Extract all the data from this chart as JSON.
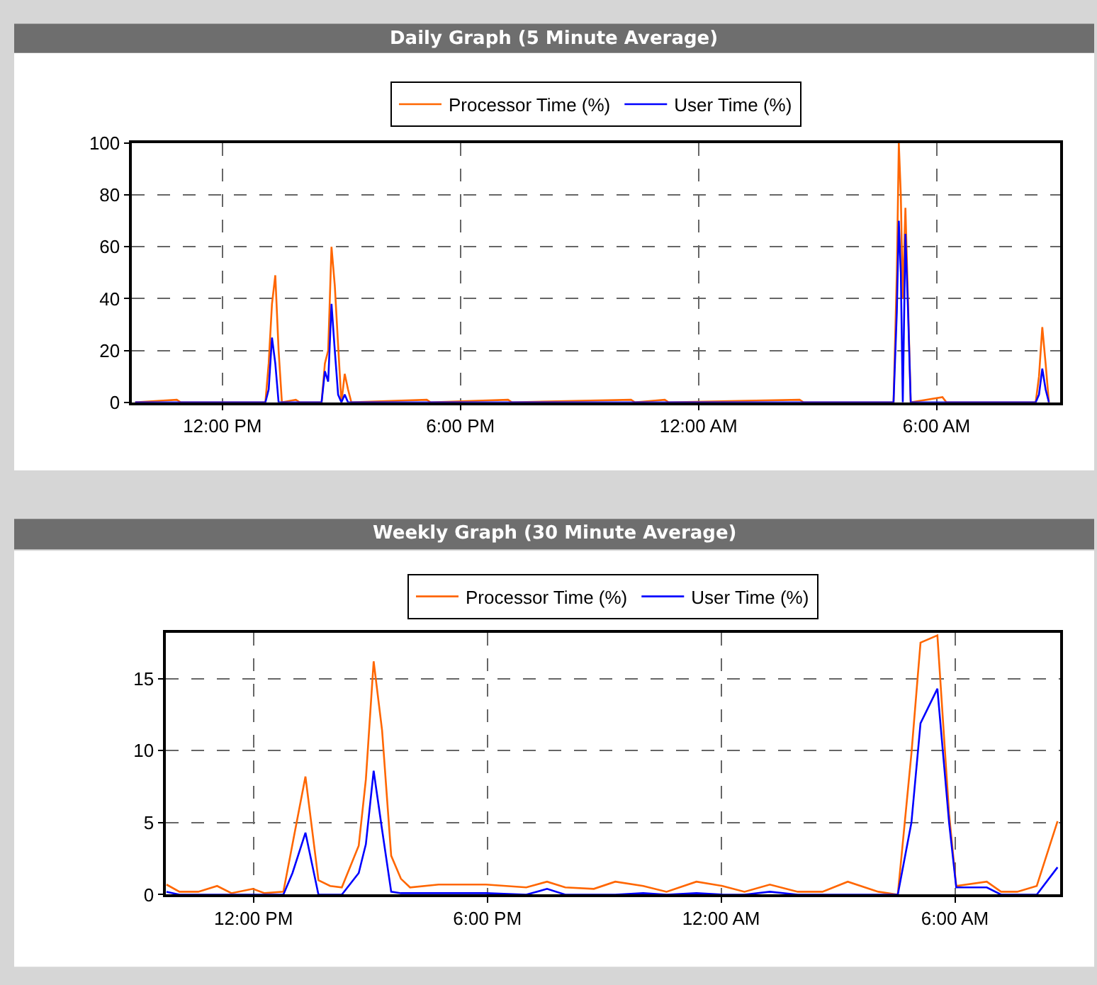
{
  "chart_data": [
    {
      "type": "line",
      "title": "Daily Graph (5 Minute Average)",
      "legend": "top",
      "grid": true,
      "marker": "none",
      "line_style": "solid",
      "x": [
        "--01-01T09:48",
        "--01-01T10:51",
        "--01-01T10:57",
        "--01-01T13:05",
        "--01-01T13:10",
        "--01-01T13:15",
        "--01-01T13:20",
        "--01-01T13:25",
        "--01-01T13:30",
        "--01-01T13:51",
        "--01-01T13:57",
        "--01-01T14:30",
        "--01-01T14:35",
        "--01-01T14:40",
        "--01-01T14:45",
        "--01-01T14:50",
        "--01-01T14:55",
        "--01-01T15:00",
        "--01-01T15:05",
        "--01-01T15:10",
        "--01-01T15:15",
        "--01-01T17:09",
        "--01-01T17:15",
        "--01-01T19:12",
        "--01-01T19:18",
        "--01-01T22:18",
        "--01-01T22:24",
        "--01-01T23:09",
        "--01-01T23:15",
        "--01-02T02:33",
        "--01-02T02:39",
        "--01-02T04:55",
        "--01-02T05:00",
        "--01-02T05:03",
        "--01-02T05:06",
        "--01-02T05:09",
        "--01-02T05:13",
        "--01-02T05:17",
        "--01-02T05:21",
        "--01-02T06:09",
        "--01-02T06:15",
        "--01-02T08:30",
        "--01-02T08:35",
        "--01-02T08:40",
        "--01-02T08:45",
        "--01-02T08:50"
      ],
      "series": [
        {
          "name": "Processor Time (%)",
          "color": "#ff6600",
          "values": [
            0,
            1,
            0,
            0,
            15,
            38,
            49,
            20,
            0,
            1,
            0,
            0,
            15,
            20,
            60,
            45,
            22,
            0,
            11,
            5,
            0,
            1,
            0,
            1,
            0,
            1,
            0,
            1,
            0,
            1,
            0,
            0,
            50,
            100,
            80,
            40,
            75,
            38,
            0,
            2,
            0,
            0,
            10,
            29,
            15,
            0
          ]
        },
        {
          "name": "User Time (%)",
          "color": "#0000ff",
          "values": [
            0,
            0,
            0,
            0,
            5,
            25,
            15,
            0,
            0,
            0,
            0,
            0,
            12,
            8,
            38,
            20,
            3,
            0,
            3,
            0,
            0,
            0,
            0,
            0,
            0,
            0,
            0,
            0,
            0,
            0,
            0,
            0,
            35,
            70,
            50,
            0,
            65,
            35,
            0,
            0,
            0,
            0,
            3,
            13,
            5,
            0
          ]
        }
      ],
      "xlim": [
        "--01-01T09:43",
        "--01-02T09:07"
      ],
      "xticks": [
        {
          "value": "--01-01T12:00",
          "label": "12:00 PM"
        },
        {
          "value": "--01-01T18:00",
          "label": "6:00 PM"
        },
        {
          "value": "--01-02T00:00",
          "label": "12:00 AM"
        },
        {
          "value": "--01-02T06:00",
          "label": "6:00 AM"
        }
      ],
      "ylim": [
        0,
        100
      ],
      "yticks": [
        0,
        20,
        40,
        60,
        80,
        100
      ]
    },
    {
      "type": "line",
      "title": "Weekly Graph (30 Minute Average)",
      "legend": "top",
      "grid": true,
      "marker": "none",
      "line_style": "solid",
      "x": [
        "--01-01T09:46",
        "--01-01T10:06",
        "--01-01T10:35",
        "--01-01T11:04",
        "--01-01T11:26",
        "--01-01T11:59",
        "--01-01T12:17",
        "--01-01T12:46",
        "--01-01T13:00",
        "--01-01T13:20",
        "--01-01T13:40",
        "--01-01T13:58",
        "--01-01T14:16",
        "--01-01T14:42",
        "--01-01T14:53",
        "--01-01T15:05",
        "--01-01T15:18",
        "--01-01T15:32",
        "--01-01T15:47",
        "--01-01T16:01",
        "--01-01T16:45",
        "--01-01T17:58",
        "--01-01T19:00",
        "--01-01T19:32",
        "--01-01T20:00",
        "--01-01T20:44",
        "--01-01T21:17",
        "--01-01T22:00",
        "--01-01T22:36",
        "--01-01T23:22",
        "--01-02T00:02",
        "--01-02T00:36",
        "--01-02T01:15",
        "--01-02T01:58",
        "--01-02T02:36",
        "--01-02T03:15",
        "--01-02T04:02",
        "--01-02T04:32",
        "--01-02T04:53",
        "--01-02T05:07",
        "--01-02T05:33",
        "--01-02T05:51",
        "--01-02T06:02",
        "--01-02T06:49",
        "--01-02T07:11",
        "--01-02T07:36",
        "--01-02T08:06",
        "--01-02T08:38"
      ],
      "series": [
        {
          "name": "Processor Time (%)",
          "color": "#ff6600",
          "values": [
            0.7,
            0.2,
            0.2,
            0.6,
            0.1,
            0.4,
            0.1,
            0.2,
            3.5,
            8.2,
            1.0,
            0.6,
            0.5,
            3.4,
            8.0,
            16.2,
            11.4,
            2.7,
            1.1,
            0.5,
            0.7,
            0.7,
            0.5,
            0.9,
            0.5,
            0.4,
            0.9,
            0.6,
            0.2,
            0.9,
            0.6,
            0.2,
            0.7,
            0.2,
            0.2,
            0.9,
            0.2,
            0,
            9.8,
            17.5,
            18.0,
            5.6,
            0.6,
            0.9,
            0.2,
            0.2,
            0.6,
            5.1
          ]
        },
        {
          "name": "User Time (%)",
          "color": "#0000ff",
          "values": [
            0.2,
            0,
            0,
            0,
            0,
            0,
            0,
            0,
            1.5,
            4.3,
            0,
            0,
            0,
            1.5,
            3.5,
            8.6,
            4.5,
            0.2,
            0.1,
            0.1,
            0.1,
            0.1,
            0,
            0.4,
            0,
            0,
            0,
            0.1,
            0,
            0.1,
            0,
            0,
            0.2,
            0,
            0,
            0,
            0,
            0,
            5,
            11.9,
            14.3,
            5,
            0.5,
            0.5,
            0,
            0,
            0,
            1.9
          ]
        }
      ],
      "xlim": [
        "--01-01T09:45",
        "--01-02T08:42"
      ],
      "xticks": [
        {
          "value": "--01-01T12:00",
          "label": "12:00 PM"
        },
        {
          "value": "--01-01T18:00",
          "label": "6:00 PM"
        },
        {
          "value": "--01-02T00:00",
          "label": "12:00 AM"
        },
        {
          "value": "--01-02T06:00",
          "label": "6:00 AM"
        }
      ],
      "ylim": [
        0,
        18.2
      ],
      "yticks": [
        0,
        5,
        10,
        15
      ]
    }
  ]
}
